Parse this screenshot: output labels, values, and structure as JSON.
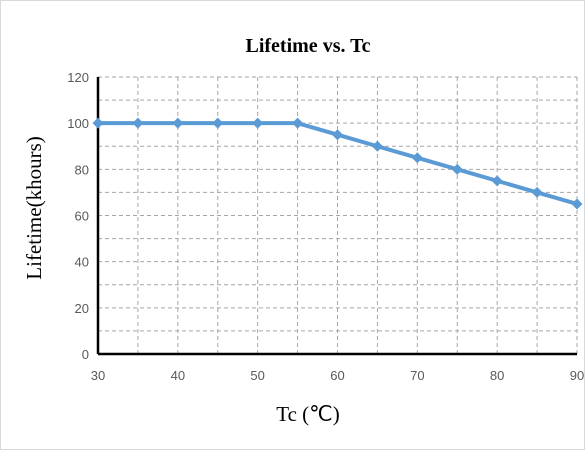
{
  "chart_data": {
    "type": "line",
    "title": "Lifetime vs. Tc",
    "xlabel": "Tc (℃)",
    "ylabel": "Lifetime(khours)",
    "xlim": [
      30,
      90
    ],
    "ylim": [
      0,
      120
    ],
    "grid": true,
    "x_ticks": [
      30,
      40,
      50,
      60,
      70,
      80,
      90
    ],
    "y_ticks": [
      0,
      20,
      40,
      60,
      80,
      100,
      120
    ],
    "series": [
      {
        "color": "#5b9bd5",
        "marker": "diamond",
        "x": [
          30,
          35,
          40,
          45,
          50,
          55,
          60,
          65,
          70,
          75,
          80,
          85,
          90
        ],
        "y": [
          100,
          100,
          100,
          100,
          100,
          100,
          95,
          90,
          85,
          80,
          75,
          70,
          65
        ]
      }
    ]
  }
}
